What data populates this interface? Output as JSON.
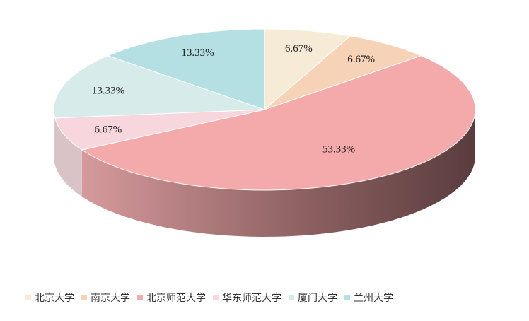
{
  "chart_data": {
    "type": "pie",
    "title": "",
    "labels": [
      "北京大学",
      "南京大学",
      "北京师范大学",
      "华东师范大学",
      "厦门大学",
      "兰州大学"
    ],
    "values": [
      6.67,
      6.67,
      53.33,
      6.67,
      13.33,
      13.33
    ],
    "value_labels": [
      "6.67%",
      "6.67%",
      "53.33%",
      "6.67%",
      "13.33%",
      "13.33%"
    ],
    "colors": [
      "#f5ebd6",
      "#f6d3b7",
      "#f4aaaa",
      "#f8d6de",
      "#d7ecea",
      "#b4dfe3"
    ],
    "legend_position": "bottom",
    "style": "3d"
  }
}
